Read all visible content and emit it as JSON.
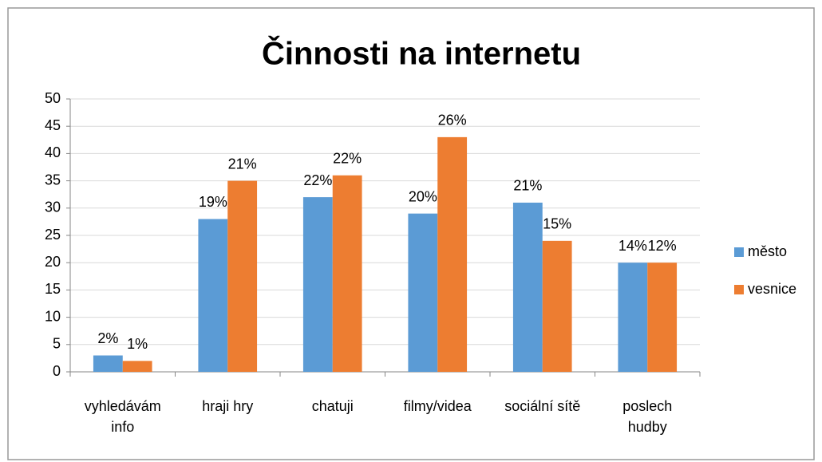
{
  "chart_data": {
    "type": "bar",
    "title": "Činnosti na internetu",
    "categories": [
      "vyhledávám info",
      "hraji hry",
      "chatuji",
      "filmy/videa",
      "sociální sítě",
      "poslech hudby"
    ],
    "series": [
      {
        "name": "město",
        "color": "#5b9bd5",
        "values": [
          3,
          28,
          32,
          29,
          31,
          20
        ],
        "value_labels": [
          "2%",
          "19%",
          "22%",
          "20%",
          "21%",
          "14%"
        ]
      },
      {
        "name": "vesnice",
        "color": "#ed7d31",
        "values": [
          2,
          35,
          36,
          43,
          24,
          20
        ],
        "value_labels": [
          "1%",
          "21%",
          "22%",
          "26%",
          "15%",
          "12%"
        ]
      }
    ],
    "ylim": [
      0,
      50
    ],
    "yticks": [
      0,
      5,
      10,
      15,
      20,
      25,
      30,
      35,
      40,
      45,
      50
    ],
    "grid": true,
    "legend": "right"
  }
}
